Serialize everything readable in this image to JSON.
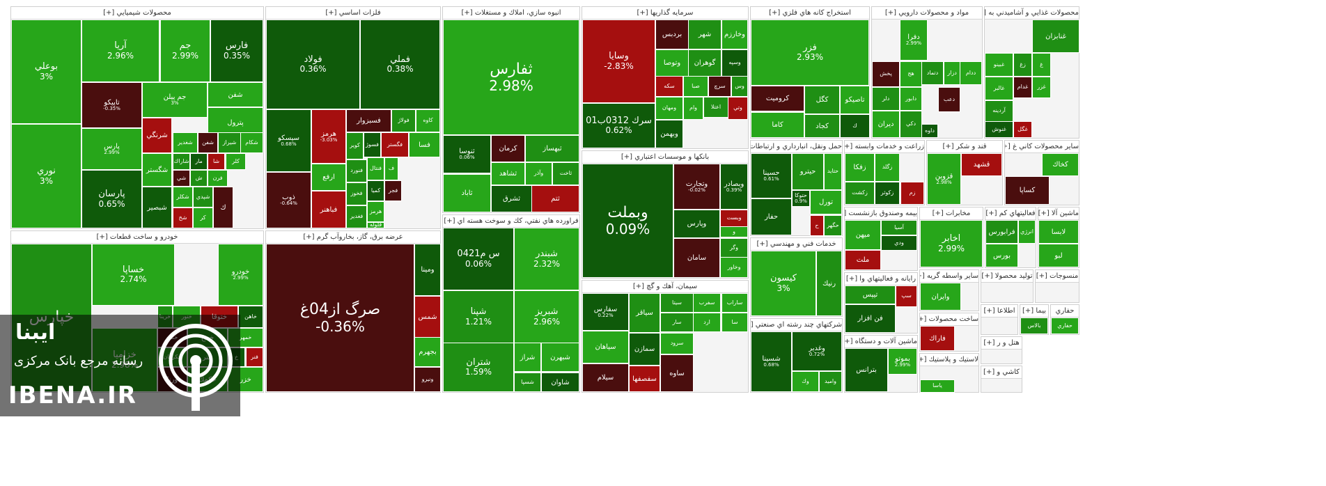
{
  "colors": {
    "up_strong": "#27a61a",
    "up": "#1f8f14",
    "up_dark": "#0f5a0a",
    "down_dark": "#4a0e0e",
    "down": "#a50f0f",
    "down_strong": "#c01414"
  },
  "watermark": {
    "line1": "ایبنا",
    "line2": "رسانه مرجع بانک مرکزی",
    "line3": "IBENA.IR",
    "icon": "ibena-logo-icon"
  },
  "chart_data": {
    "type": "treemap",
    "sectors": [
      {
        "name": "محصولات شيميايي [+]",
        "tiles": [
          {
            "label": "بوعلي",
            "value": "3%"
          },
          {
            "label": "نوري",
            "value": "3%"
          },
          {
            "label": "آريا",
            "value": "2.96%"
          },
          {
            "label": "جم",
            "value": "2.99%"
          },
          {
            "label": "فارس",
            "value": "0.35%"
          },
          {
            "label": "تاپيكو",
            "value": "-0.35%"
          },
          {
            "label": "جم پيلن",
            "value": "3%"
          },
          {
            "label": "شفن",
            "value": ""
          },
          {
            "label": "پترول",
            "value": ""
          },
          {
            "label": "پارس",
            "value": "2.99%"
          },
          {
            "label": "پارسان",
            "value": "0.65%"
          },
          {
            "label": "شرنگي",
            "value": ""
          },
          {
            "label": "شغدير",
            "value": ""
          },
          {
            "label": "شفن",
            "value": ""
          },
          {
            "label": "شيراز",
            "value": ""
          },
          {
            "label": "شكام",
            "value": ""
          },
          {
            "label": "شگستر",
            "value": ""
          },
          {
            "label": "شاراك",
            "value": ""
          },
          {
            "label": "مار",
            "value": ""
          },
          {
            "label": "شا",
            "value": ""
          },
          {
            "label": "كلر",
            "value": ""
          },
          {
            "label": "شي",
            "value": ""
          },
          {
            "label": "ش",
            "value": ""
          },
          {
            "label": "فرن",
            "value": ""
          },
          {
            "label": "شكلر",
            "value": ""
          },
          {
            "label": "شپدي",
            "value": ""
          },
          {
            "label": "شبصير",
            "value": ""
          },
          {
            "label": "شخ",
            "value": ""
          },
          {
            "label": "كر",
            "value": ""
          },
          {
            "label": "ك",
            "value": ""
          }
        ]
      },
      {
        "name": "فلزات اساسي [+]",
        "tiles": [
          {
            "label": "فولاد",
            "value": "0.36%"
          },
          {
            "label": "فملي",
            "value": "0.38%"
          },
          {
            "label": "سيسكو",
            "value": "0.68%"
          },
          {
            "label": "هرمز",
            "value": "-3.03%"
          },
          {
            "label": "فسبزوار",
            "value": ""
          },
          {
            "label": "فولاژ",
            "value": ""
          },
          {
            "label": "كاوه",
            "value": ""
          },
          {
            "label": "ارفع",
            "value": ""
          },
          {
            "label": "كوير",
            "value": ""
          },
          {
            "label": "فسوژ",
            "value": ""
          },
          {
            "label": "فگستر",
            "value": ""
          },
          {
            "label": "فسا",
            "value": ""
          },
          {
            "label": "ذوب",
            "value": "-0.64%"
          },
          {
            "label": "فنورد",
            "value": ""
          },
          {
            "label": "فنتال",
            "value": ""
          },
          {
            "label": "ف",
            "value": ""
          },
          {
            "label": "فخوز",
            "value": ""
          },
          {
            "label": "كميا",
            "value": ""
          },
          {
            "label": "فباهنر",
            "value": ""
          },
          {
            "label": "هرمز",
            "value": ""
          },
          {
            "label": "فجر",
            "value": ""
          },
          {
            "label": "فغدير",
            "value": ""
          },
          {
            "label": "فلوله",
            "value": ""
          }
        ]
      },
      {
        "name": "انبوه سازي، املاك و مستغلات [+]",
        "tiles": [
          {
            "label": "ثفارس",
            "value": "2.98%"
          },
          {
            "label": "ثنوسا",
            "value": "0.06%"
          },
          {
            "label": "ثاباد",
            "value": ""
          },
          {
            "label": "كرمان",
            "value": ""
          },
          {
            "label": "ثبهساز",
            "value": ""
          },
          {
            "label": "ثشاهد",
            "value": ""
          },
          {
            "label": "وآذر",
            "value": ""
          },
          {
            "label": "ثاخت",
            "value": ""
          },
          {
            "label": "ثشرق",
            "value": ""
          },
          {
            "label": "ثتم",
            "value": ""
          }
        ]
      },
      {
        "name": "سرمايه گذاريها [+]",
        "tiles": [
          {
            "label": "وسايا",
            "value": "-2.83%"
          },
          {
            "label": "سرك 0312ب01",
            "value": "0.62%"
          },
          {
            "label": "بردبس",
            "value": ""
          },
          {
            "label": "شهر",
            "value": ""
          },
          {
            "label": "وخارزم",
            "value": ""
          },
          {
            "label": "وتوصا",
            "value": ""
          },
          {
            "label": "گوهران",
            "value": ""
          },
          {
            "label": "وسپه",
            "value": ""
          },
          {
            "label": "سكه",
            "value": ""
          },
          {
            "label": "صبا",
            "value": ""
          },
          {
            "label": "سرچ",
            "value": ""
          },
          {
            "label": "وس",
            "value": ""
          },
          {
            "label": "ومهان",
            "value": ""
          },
          {
            "label": "وام",
            "value": ""
          },
          {
            "label": "اعتلا",
            "value": ""
          },
          {
            "label": "وبهمن",
            "value": ""
          },
          {
            "label": "وتي",
            "value": ""
          }
        ]
      },
      {
        "name": "استخراج كانه هاي فلزي [+]",
        "tiles": [
          {
            "label": "فزر",
            "value": "2.93%"
          },
          {
            "label": "كروميت",
            "value": ""
          },
          {
            "label": "كگل",
            "value": ""
          },
          {
            "label": "تاصيكو",
            "value": ""
          },
          {
            "label": "كاما",
            "value": ""
          },
          {
            "label": "كجاد",
            "value": ""
          },
          {
            "label": "ك",
            "value": ""
          }
        ]
      },
      {
        "name": "مواد و محصولات دارويي [+]",
        "tiles": [
          {
            "label": "پخش",
            "value": ""
          },
          {
            "label": "دلر",
            "value": ""
          },
          {
            "label": "ديران",
            "value": ""
          },
          {
            "label": "دابور",
            "value": ""
          },
          {
            "label": "دكي",
            "value": ""
          },
          {
            "label": "داوه",
            "value": ""
          },
          {
            "label": "دفرا",
            "value": "2.99%"
          },
          {
            "label": "هج",
            "value": ""
          },
          {
            "label": "دعب",
            "value": ""
          },
          {
            "label": "دتماد",
            "value": ""
          },
          {
            "label": "دزار",
            "value": ""
          },
          {
            "label": "ددام",
            "value": ""
          }
        ]
      },
      {
        "name": "محصولات غذايي و آشاميدني به [+]",
        "tiles": [
          {
            "label": "غنابزان",
            "value": ""
          },
          {
            "label": "غبينو",
            "value": ""
          },
          {
            "label": "غالبر",
            "value": ""
          },
          {
            "label": "آردينه",
            "value": ""
          },
          {
            "label": "غنوش",
            "value": ""
          },
          {
            "label": "غگل",
            "value": ""
          },
          {
            "label": "غزر",
            "value": ""
          },
          {
            "label": "غدام",
            "value": ""
          },
          {
            "label": "زغ",
            "value": ""
          },
          {
            "label": "غ",
            "value": ""
          }
        ]
      },
      {
        "name": "بانكها و موسسات اعتباري [+]",
        "tiles": [
          {
            "label": "وبملت",
            "value": "0.09%"
          },
          {
            "label": "وتجارت",
            "value": "-0.02%"
          },
          {
            "label": "وبصادر",
            "value": "0.39%"
          },
          {
            "label": "وپارس",
            "value": ""
          },
          {
            "label": "وبست",
            "value": ""
          },
          {
            "label": "و",
            "value": ""
          },
          {
            "label": "سامان",
            "value": ""
          },
          {
            "label": "وگر",
            "value": ""
          },
          {
            "label": "وخاور",
            "value": ""
          }
        ]
      },
      {
        "name": "خودرو و ساخت قطعات [+]",
        "tiles": [
          {
            "label": "خساپا",
            "value": "2.74%"
          },
          {
            "label": "خودرو",
            "value": "2.99%"
          },
          {
            "label": "خاهن",
            "value": ""
          },
          {
            "label": "ختوقا",
            "value": ""
          },
          {
            "label": "خنور",
            "value": ""
          },
          {
            "label": "خكار",
            "value": ""
          },
          {
            "label": "خمح",
            "value": ""
          },
          {
            "label": "خمهر",
            "value": ""
          },
          {
            "label": "خكرمان",
            "value": ""
          },
          {
            "label": "ختر",
            "value": ""
          },
          {
            "label": "خ",
            "value": ""
          },
          {
            "label": "فنر",
            "value": ""
          },
          {
            "label": "خزاميا",
            "value": "2.98%"
          },
          {
            "label": "ورنا",
            "value": ""
          },
          {
            "label": "خپارس",
            "value": ""
          },
          {
            "label": "خكمك",
            "value": ""
          },
          {
            "label": "خزر",
            "value": ""
          },
          {
            "label": "خرينا",
            "value": ""
          }
        ]
      },
      {
        "name": "عرضه برق، گاز، بخاروآب گرم [+]",
        "tiles": [
          {
            "label": "صرگ از04غ",
            "value": "-0.36%"
          },
          {
            "label": "ومينا",
            "value": ""
          },
          {
            "label": "شمس",
            "value": ""
          },
          {
            "label": "بجهرم",
            "value": ""
          },
          {
            "label": "ونيرو",
            "value": ""
          }
        ]
      },
      {
        "name": "فراورده هاي نفتي، كك و سوخت هسته اي [+]",
        "tiles": [
          {
            "label": "س م0421",
            "value": "0.06%"
          },
          {
            "label": "شبندر",
            "value": "2.32%"
          },
          {
            "label": "شپنا",
            "value": "1.21%"
          },
          {
            "label": "شبريز",
            "value": "2.96%"
          },
          {
            "label": "شتران",
            "value": "1.59%"
          },
          {
            "label": "شراز",
            "value": ""
          },
          {
            "label": "شبهرن",
            "value": ""
          },
          {
            "label": "شسپا",
            "value": ""
          },
          {
            "label": "شاوان",
            "value": ""
          },
          {
            "label": "ش",
            "value": ""
          }
        ]
      },
      {
        "name": "سيمان، آهك و گچ [+]",
        "tiles": [
          {
            "label": "سفارس",
            "value": "0.22%"
          },
          {
            "label": "سياهان",
            "value": ""
          },
          {
            "label": "سيلام",
            "value": ""
          },
          {
            "label": "سيتا",
            "value": ""
          },
          {
            "label": "سفرب",
            "value": ""
          },
          {
            "label": "ساراب",
            "value": ""
          },
          {
            "label": "سياقر",
            "value": ""
          },
          {
            "label": "سمازن",
            "value": ""
          },
          {
            "label": "سفصفها",
            "value": ""
          },
          {
            "label": "سرود",
            "value": ""
          },
          {
            "label": "ساوه",
            "value": ""
          },
          {
            "label": "سار",
            "value": ""
          },
          {
            "label": "سا",
            "value": ""
          },
          {
            "label": "ارد",
            "value": ""
          }
        ]
      },
      {
        "name": "حمل ونقل، انبارداري و ارتباطات [+]",
        "tiles": [
          {
            "label": "حسينا",
            "value": "0.61%"
          },
          {
            "label": "حتوكا",
            "value": "0.9%"
          },
          {
            "label": "حيترو",
            "value": ""
          },
          {
            "label": "حتايد",
            "value": ""
          },
          {
            "label": "تورل",
            "value": ""
          },
          {
            "label": "حگهر",
            "value": ""
          },
          {
            "label": "حفار",
            "value": ""
          },
          {
            "label": "ح",
            "value": ""
          }
        ]
      },
      {
        "name": "خدمات فني و مهندسي [+]",
        "tiles": [
          {
            "label": "كيسون",
            "value": "3%"
          },
          {
            "label": "رنيك",
            "value": ""
          }
        ]
      },
      {
        "name": "شركتهاي چند رشته اي صنعتي [+]",
        "tiles": [
          {
            "label": "شسينا",
            "value": "0.68%"
          },
          {
            "label": "وغدير",
            "value": "0.72%"
          },
          {
            "label": "وك",
            "value": ""
          },
          {
            "label": "وامید",
            "value": ""
          }
        ]
      },
      {
        "name": "زراعت و خدمات وابسته [+]",
        "tiles": [
          {
            "label": "زفكا",
            "value": ""
          },
          {
            "label": "زگلد",
            "value": ""
          },
          {
            "label": "زكشت",
            "value": ""
          },
          {
            "label": "زكوثر",
            "value": ""
          },
          {
            "label": "زم",
            "value": ""
          }
        ]
      },
      {
        "name": "بيمه وصندوق بازنشست [+]",
        "tiles": [
          {
            "label": "ميهن",
            "value": ""
          },
          {
            "label": "آسيا",
            "value": ""
          },
          {
            "label": "ودي",
            "value": ""
          },
          {
            "label": "ملت",
            "value": ""
          }
        ]
      },
      {
        "name": "رايانه و فعاليتهاي وا [+]",
        "tiles": [
          {
            "label": "تيپس",
            "value": ""
          },
          {
            "label": "فن افزار",
            "value": ""
          },
          {
            "label": "سپ",
            "value": ""
          }
        ]
      },
      {
        "name": "ماشين آلات و دستگاه [+]",
        "tiles": [
          {
            "label": "بترانس",
            "value": ""
          },
          {
            "label": "بموتو",
            "value": "2.99%"
          }
        ]
      },
      {
        "name": "قند و شكر [+]",
        "tiles": [
          {
            "label": "قشهد",
            "value": ""
          },
          {
            "label": "قزوين",
            "value": "2.98%"
          }
        ]
      },
      {
        "name": "ساير محصولات كاني غ [+]",
        "tiles": [
          {
            "label": "كخاك",
            "value": ""
          },
          {
            "label": "كساپا",
            "value": ""
          }
        ]
      },
      {
        "name": "مخابرات [+]",
        "tiles": [
          {
            "label": "اخابر",
            "value": "2.99%"
          }
        ]
      },
      {
        "name": "فعاليتهاي كم [+]",
        "tiles": [
          {
            "label": "فرابورس",
            "value": ""
          },
          {
            "label": "انرژي",
            "value": ""
          },
          {
            "label": "بورس",
            "value": ""
          }
        ]
      },
      {
        "name": "ماشين آلا [+]",
        "tiles": [
          {
            "label": "لابسا",
            "value": ""
          },
          {
            "label": "لبو",
            "value": ""
          }
        ]
      },
      {
        "name": "ساير واسطه گريه [+]",
        "tiles": [
          {
            "label": "وايران",
            "value": ""
          }
        ]
      },
      {
        "name": "توليد محصولا [+]",
        "tiles": []
      },
      {
        "name": "منسوجات [+]",
        "tiles": []
      },
      {
        "name": "ساخت محصولات [+]",
        "tiles": [
          {
            "label": "فاراك",
            "value": ""
          }
        ]
      },
      {
        "name": "لاستيك و پلاستيك [+]",
        "tiles": [
          {
            "label": "ياسا",
            "value": ""
          }
        ]
      },
      {
        "name": "اطلاعا [+]",
        "tiles": []
      },
      {
        "name": "بيما [+]",
        "tiles": [
          {
            "label": "بالاس",
            "value": ""
          }
        ]
      },
      {
        "name": "حفاري",
        "tiles": [
          {
            "label": "حفاري",
            "value": ""
          }
        ]
      },
      {
        "name": "هتل و ر [+]",
        "tiles": []
      },
      {
        "name": "كاشي و [+]",
        "tiles": []
      }
    ]
  }
}
